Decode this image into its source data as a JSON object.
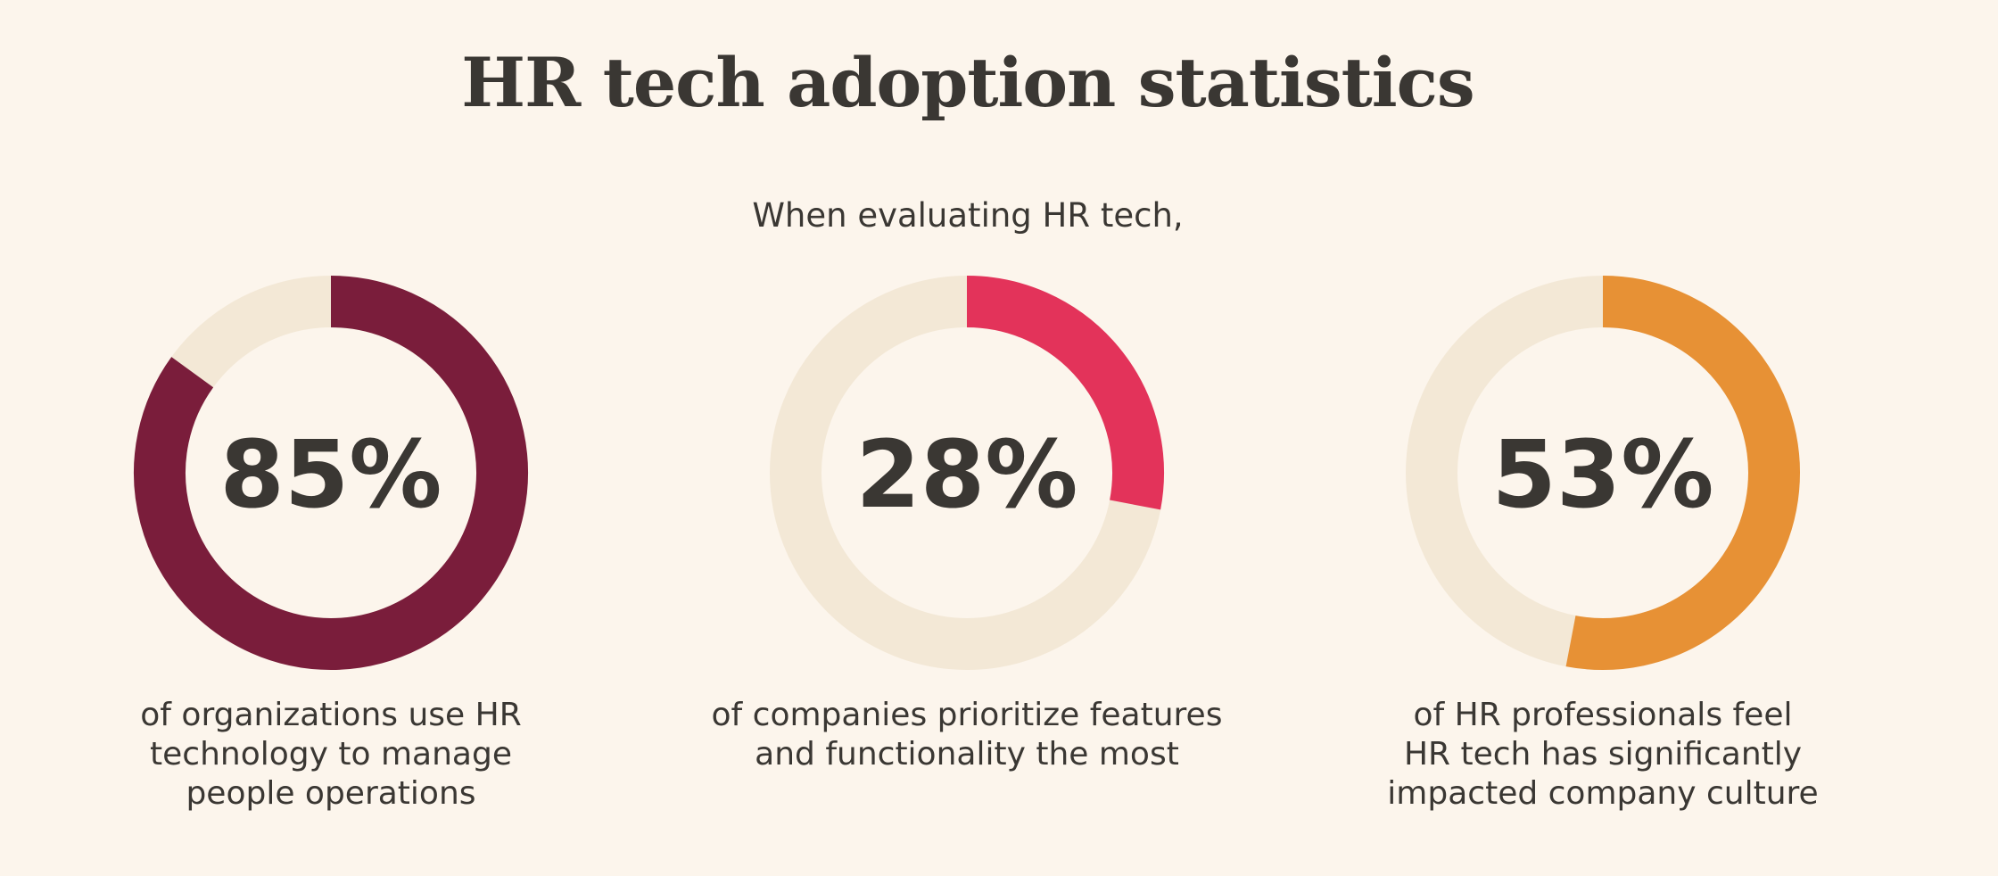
{
  "title": "HR tech adoption statistics",
  "subtitle": "When evaluating HR tech,",
  "colors": {
    "background": "#fcf5ec",
    "track": "#f3e8d6",
    "text": "#3a3733"
  },
  "chart_data": [
    {
      "type": "pie",
      "value": 85,
      "label": "85%",
      "color": "#7a1d3b",
      "caption": [
        "of organizations use HR",
        "technology to manage",
        "people operations"
      ]
    },
    {
      "type": "pie",
      "value": 28,
      "label": "28%",
      "color": "#e3335a",
      "caption": [
        "of companies prioritize features",
        "and functionality the most"
      ]
    },
    {
      "type": "pie",
      "value": 53,
      "label": "53%",
      "color": "#e79135",
      "caption": [
        "of HR professionals feel",
        "HR tech has significantly",
        "impacted company culture"
      ]
    }
  ]
}
